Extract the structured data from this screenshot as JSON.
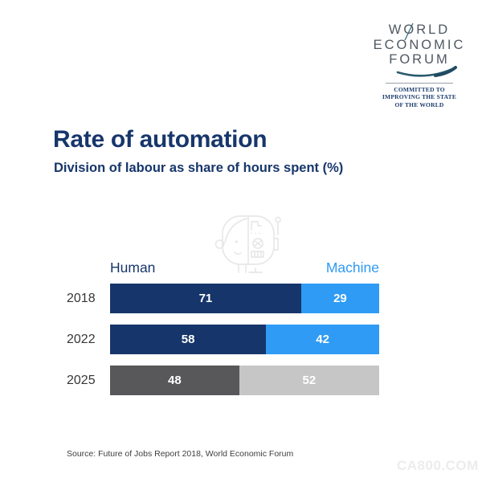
{
  "logo": {
    "lines": [
      "WORLD",
      "ECONOMIC",
      "FORUM"
    ],
    "tagline_lines": [
      "COMMITTED TO",
      "IMPROVING THE STATE",
      "OF THE WORLD"
    ]
  },
  "header": {
    "title": "Rate of automation",
    "subtitle": "Division of labour as share of hours spent (%)"
  },
  "legend": {
    "left": "Human",
    "right": "Machine"
  },
  "colors": {
    "navy": "#16366b",
    "light_blue": "#2f9bf4",
    "dark_gray": "#58585a",
    "light_gray": "#c6c6c6",
    "title_navy": "#17366b",
    "value_label": "#ffffff"
  },
  "chart_data": {
    "type": "bar",
    "orientation": "horizontal-stacked",
    "title": "Rate of automation",
    "subtitle": "Division of labour as share of hours spent (%)",
    "categories": [
      "2018",
      "2022",
      "2025"
    ],
    "series": [
      {
        "name": "Human",
        "values": [
          71,
          58,
          48
        ]
      },
      {
        "name": "Machine",
        "values": [
          29,
          42,
          52
        ]
      }
    ],
    "xlim": [
      0,
      100
    ],
    "grid": false,
    "legend_position": "top",
    "rows": [
      {
        "year": "2018",
        "segments": [
          {
            "label": "71",
            "value": 71,
            "color": "#16366b"
          },
          {
            "label": "29",
            "value": 29,
            "color": "#2f9bf4"
          }
        ]
      },
      {
        "year": "2022",
        "segments": [
          {
            "label": "58",
            "value": 58,
            "color": "#16366b"
          },
          {
            "label": "42",
            "value": 42,
            "color": "#2f9bf4"
          }
        ]
      },
      {
        "year": "2025",
        "segments": [
          {
            "label": "48",
            "value": 48,
            "color": "#58585a"
          },
          {
            "label": "52",
            "value": 52,
            "color": "#c6c6c6"
          }
        ]
      }
    ]
  },
  "footer": {
    "source": "Source: Future of Jobs Report 2018, World Economic Forum"
  },
  "watermark": {
    "site": "CA800.COM"
  }
}
